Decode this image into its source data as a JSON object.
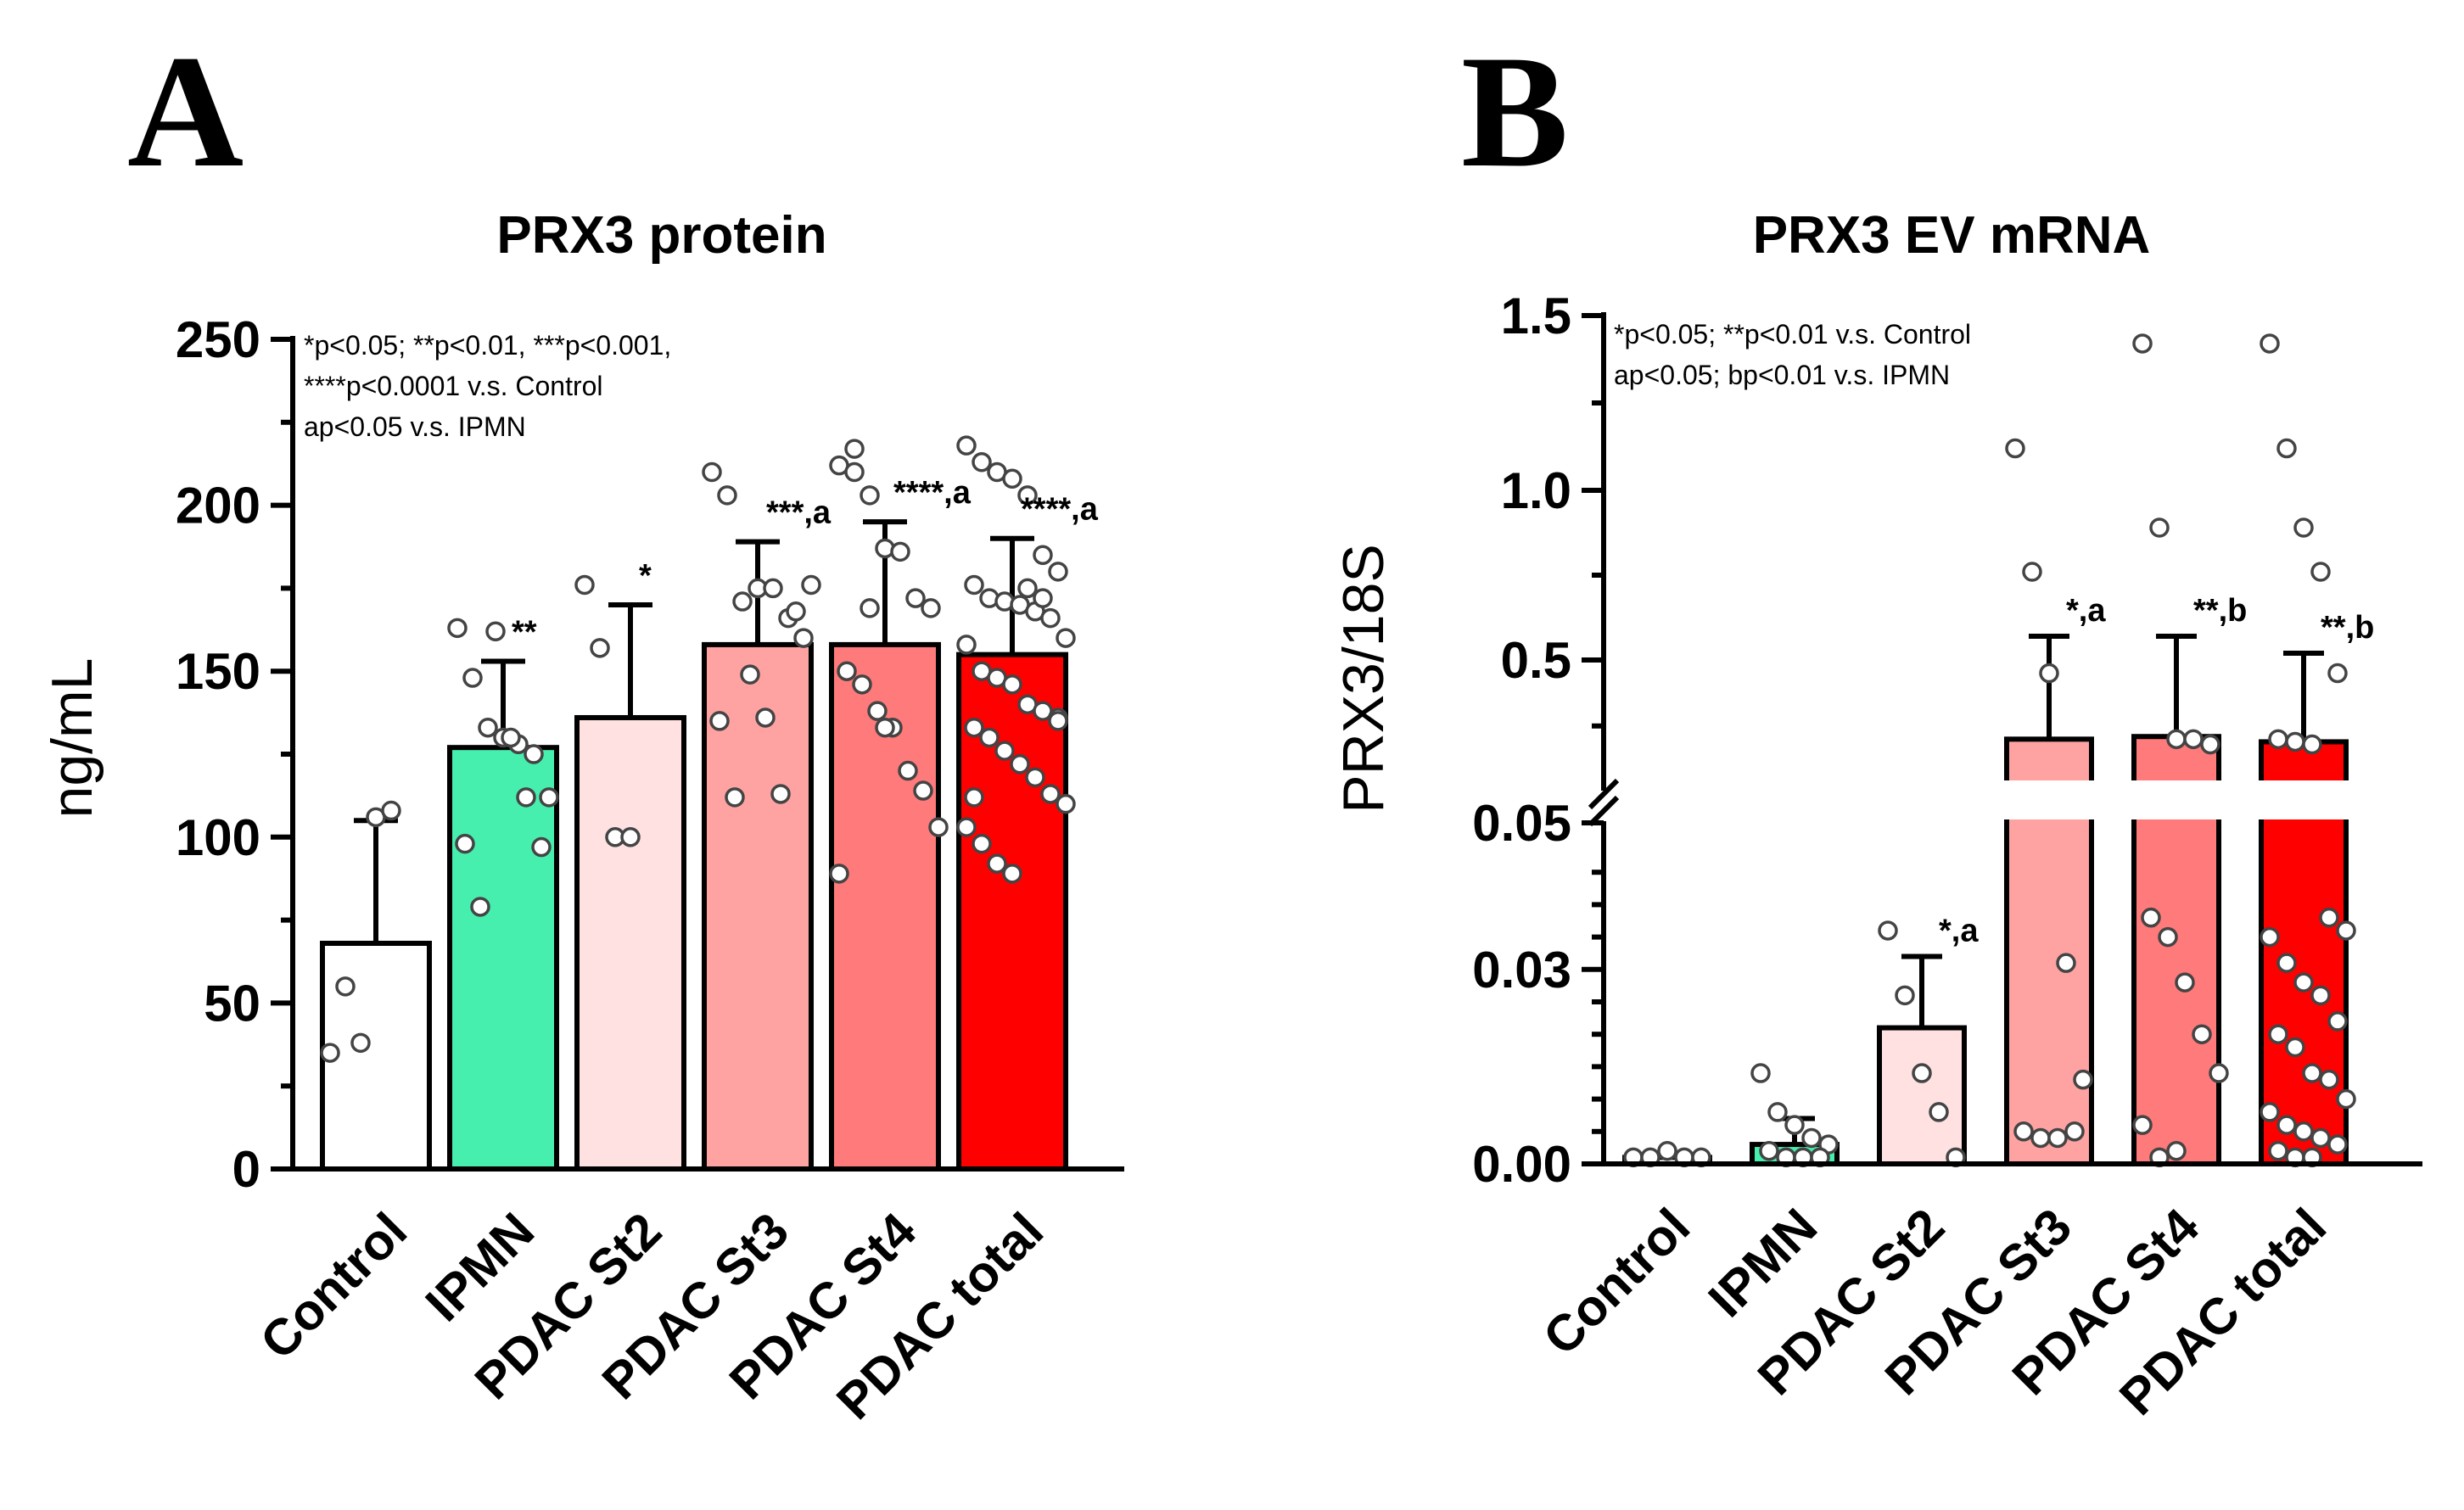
{
  "panels": {
    "A": {
      "letter": "A"
    },
    "B": {
      "letter": "B"
    }
  },
  "chart_data": [
    {
      "panel": "A",
      "type": "bar",
      "title": "PRX3 protein",
      "ylabel": "ng/mL",
      "xlabel": "",
      "ylim": [
        0,
        250
      ],
      "yticks": [
        0,
        50,
        100,
        150,
        200,
        250
      ],
      "categories": [
        "Control",
        "IPMN",
        "PDAC St2",
        "PDAC St3",
        "PDAC St4",
        "PDAC total"
      ],
      "values": [
        68,
        127,
        136,
        158,
        158,
        155
      ],
      "error_upper": [
        105,
        153,
        170,
        189,
        195,
        190
      ],
      "bar_colors": [
        "#ffffff",
        "#47efaf",
        "#ffe1e1",
        "#ffa2a2",
        "#ff7a7a",
        "#ff0000"
      ],
      "significance": [
        "",
        "**",
        "*",
        "***,a",
        "****,a",
        "****,a"
      ],
      "annotation_lines": [
        "*p<0.05; **p<0.01, ***p<0.001,",
        "****p<0.0001 v.s. Control",
        "ap<0.05 v.s. IPMN"
      ],
      "points": [
        [
          35,
          55,
          38,
          106,
          108
        ],
        [
          163,
          148,
          133,
          130,
          128,
          125,
          112,
          98,
          79,
          162,
          130,
          112,
          97
        ],
        [
          176,
          157,
          100,
          100
        ],
        [
          210,
          203,
          171,
          175,
          175,
          166,
          160,
          135,
          112,
          149,
          136,
          113,
          168,
          176
        ],
        [
          212,
          210,
          203,
          187,
          186,
          172,
          169,
          150,
          146,
          138,
          133,
          120,
          114,
          103,
          89,
          217,
          169,
          133
        ],
        [
          218,
          213,
          210,
          208,
          203,
          185,
          180,
          176,
          172,
          171,
          170,
          168,
          166,
          160,
          158,
          150,
          148,
          146,
          140,
          138,
          136,
          133,
          130,
          126,
          122,
          118,
          113,
          110,
          103,
          98,
          92,
          89,
          175,
          172,
          135,
          112
        ]
      ]
    },
    {
      "panel": "B",
      "type": "bar",
      "title": "PRX3 EV mRNA",
      "ylabel": "PRX3/18S",
      "xlabel": "",
      "axis_break": true,
      "yticks": [
        "0.00",
        "0.03",
        "0.05",
        "0.5",
        "1.0",
        "1.5"
      ],
      "categories": [
        "Control",
        "IPMN",
        "PDAC St2",
        "PDAC St3",
        "PDAC St4",
        "PDAC total"
      ],
      "values": [
        0.001,
        0.003,
        0.021,
        0.2,
        0.21,
        0.19
      ],
      "error_upper": [
        0.001,
        0.007,
        0.032,
        0.57,
        0.57,
        0.52
      ],
      "bar_colors": [
        "#ffffff",
        "#47efaf",
        "#ffe1e1",
        "#ffa2a2",
        "#ff7a7a",
        "#ff0000"
      ],
      "significance": [
        "",
        "",
        "*,a",
        "*,a",
        "**,b",
        "**,b"
      ],
      "annotation_lines": [
        "*p<0.05; **p<0.01 v.s. Control",
        "ap<0.05; bp<0.01 v.s. IPMN"
      ],
      "points": [
        [
          0.001,
          0.001,
          0.002,
          0.001,
          0.001
        ],
        [
          0.014,
          0.008,
          0.006,
          0.004,
          0.003,
          0.002,
          0.001,
          0.001,
          0.001
        ],
        [
          0.036,
          0.026,
          0.014,
          0.008,
          0.001
        ],
        [
          1.12,
          0.76,
          0.45,
          0.031,
          0.013,
          0.005,
          0.004,
          0.004,
          0.005
        ],
        [
          1.42,
          0.89,
          0.2,
          0.2,
          0.18,
          0.038,
          0.035,
          0.028,
          0.02,
          0.014,
          0.006,
          0.001,
          0.002
        ],
        [
          1.42,
          1.12,
          0.89,
          0.76,
          0.45,
          0.2,
          0.19,
          0.18,
          0.038,
          0.036,
          0.035,
          0.031,
          0.028,
          0.026,
          0.022,
          0.02,
          0.018,
          0.014,
          0.013,
          0.01,
          0.008,
          0.006,
          0.005,
          0.004,
          0.003,
          0.002,
          0.001,
          0.001
        ]
      ]
    }
  ]
}
